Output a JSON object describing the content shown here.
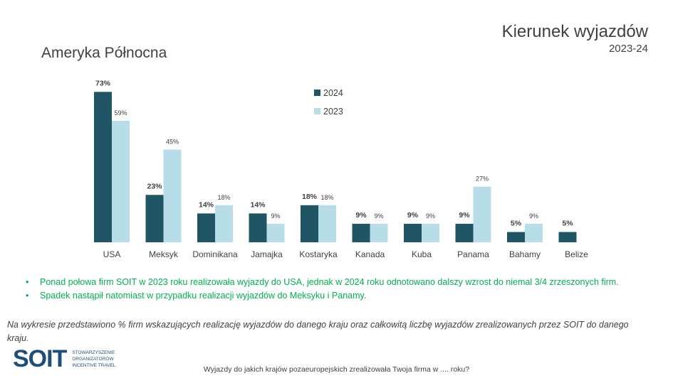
{
  "header": {
    "title": "Kierunek wyjazdów",
    "subtitle": "2023-24",
    "region": "Ameryka Północna"
  },
  "colors": {
    "s2024": "#1f5564",
    "s2023": "#b7dde8"
  },
  "chart_data": {
    "type": "bar",
    "title": "Ameryka Północna",
    "categories": [
      "USA",
      "Meksyk",
      "Dominikana",
      "Jamajka",
      "Kostaryka",
      "Kanada",
      "Kuba",
      "Panama",
      "Bahamy",
      "Belize"
    ],
    "series": [
      {
        "name": "2024",
        "values": [
          73,
          23,
          14,
          14,
          18,
          9,
          9,
          9,
          5,
          5
        ]
      },
      {
        "name": "2023",
        "values": [
          59,
          45,
          18,
          9,
          18,
          9,
          9,
          27,
          9,
          null
        ]
      }
    ],
    "unit": "%",
    "legend_position": "top-center",
    "grid": false
  },
  "bullets": [
    "Ponad połowa firm SOIT w 2023 roku realizowała wyjazdy do USA, jednak w 2024 roku odnotowano dalszy wzrost do niemal 3/4 zrzeszonych firm.",
    "Spadek nastąpił natomiast w przypadku realizacji wyjazdów do Meksyku i Panamy."
  ],
  "note": "Na wykresie przedstawiono % firm wskazujących realizację wyjazdów do danego kraju oraz całkowitą liczbę wyjazdów zrealizowanych przez SOIT do danego kraju.",
  "logo": {
    "mark": "SOIT",
    "text": [
      "STOWARZYSZENIE",
      "ORGANIZATORÓW",
      "INCENTIVE TRAVEL"
    ]
  },
  "footer": "Wyjazdy do jakich krajów pozaeuropejskich zrealizowała Twoja firma w .... roku?"
}
